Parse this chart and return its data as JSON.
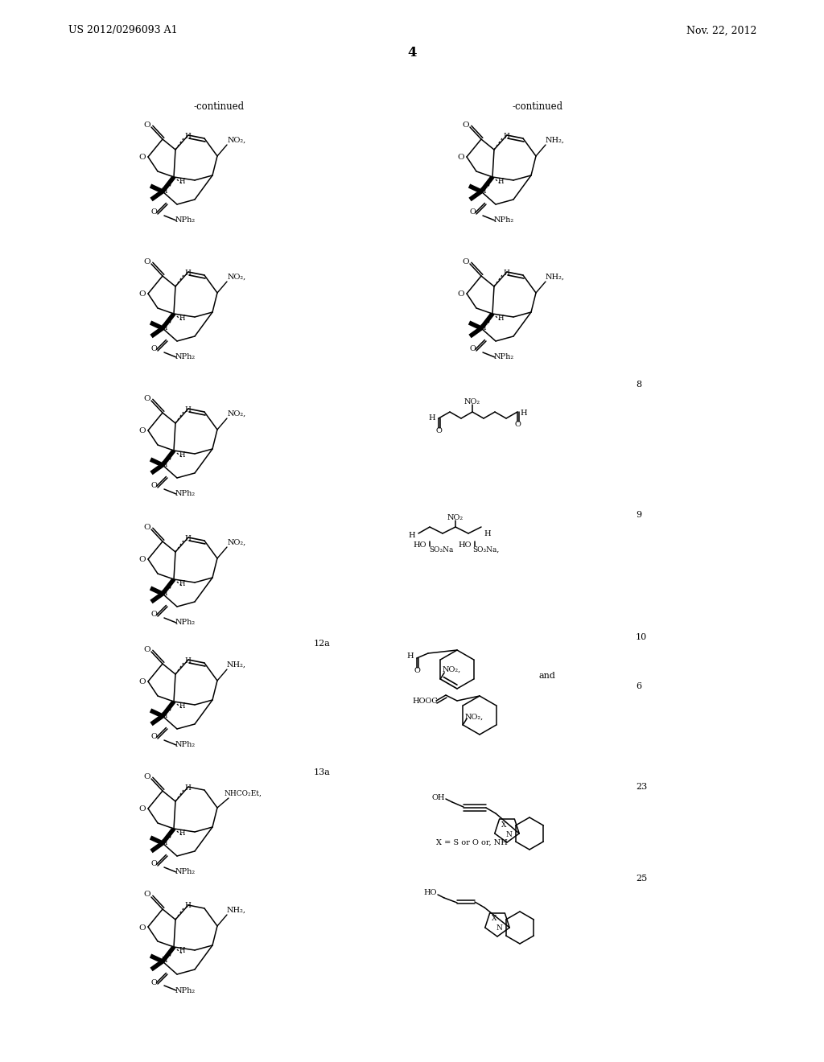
{
  "header_left": "US 2012/0296093 A1",
  "header_right": "Nov. 22, 2012",
  "page_number": "4",
  "bg": "#ffffff"
}
